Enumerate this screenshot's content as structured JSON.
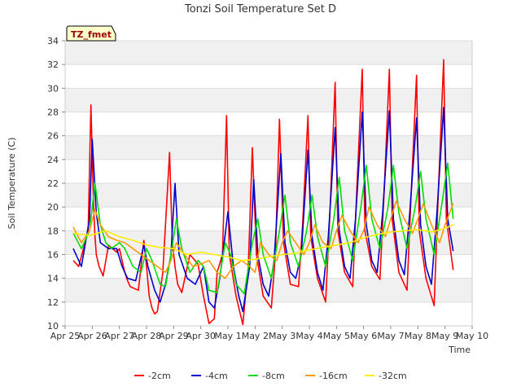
{
  "chart_data": {
    "type": "line",
    "title": "Tonzi Soil Temperature Set D",
    "xlabel": "Time",
    "ylabel": "Soil Temperature (C)",
    "badge": "TZ_fmet",
    "ylim": [
      10,
      34
    ],
    "yticks": [
      10,
      12,
      14,
      16,
      18,
      20,
      22,
      24,
      26,
      28,
      30,
      32,
      34
    ],
    "xlim": [
      0,
      15
    ],
    "xticks": [
      {
        "x": 0,
        "label": "Apr 25"
      },
      {
        "x": 1,
        "label": "Apr 26"
      },
      {
        "x": 2,
        "label": "Apr 27"
      },
      {
        "x": 3,
        "label": "Apr 28"
      },
      {
        "x": 4,
        "label": "Apr 29"
      },
      {
        "x": 5,
        "label": "Apr 30"
      },
      {
        "x": 6,
        "label": "May 1"
      },
      {
        "x": 7,
        "label": "May 2"
      },
      {
        "x": 8,
        "label": "May 3"
      },
      {
        "x": 9,
        "label": "May 4"
      },
      {
        "x": 10,
        "label": "May 5"
      },
      {
        "x": 11,
        "label": "May 6"
      },
      {
        "x": 12,
        "label": "May 7"
      },
      {
        "x": 13,
        "label": "May 8"
      },
      {
        "x": 14,
        "label": "May 9"
      },
      {
        "x": 15,
        "label": "May 10"
      }
    ],
    "grid": true,
    "legend_position": "bottom",
    "series": [
      {
        "name": "-2cm",
        "color": "#ff0000",
        "x": [
          0.3,
          0.5,
          0.85,
          0.95,
          1.05,
          1.1,
          1.15,
          1.25,
          1.4,
          1.6,
          1.9,
          2.0,
          2.1,
          2.2,
          2.3,
          2.4,
          2.7,
          2.9,
          3.0,
          3.1,
          3.2,
          3.3,
          3.4,
          3.6,
          3.85,
          3.95,
          4.05,
          4.15,
          4.3,
          4.6,
          4.9,
          5.1,
          5.3,
          5.5,
          5.6,
          5.8,
          5.95,
          6.05,
          6.3,
          6.55,
          6.75,
          6.9,
          7.05,
          7.3,
          7.6,
          7.75,
          7.9,
          8.05,
          8.3,
          8.6,
          8.75,
          8.95,
          9.05,
          9.3,
          9.6,
          9.75,
          9.95,
          10.05,
          10.3,
          10.6,
          10.75,
          10.95,
          11.05,
          11.3,
          11.6,
          11.75,
          11.95,
          12.05,
          12.3,
          12.6,
          12.75,
          12.95,
          13.05,
          13.3,
          13.6,
          13.75,
          13.95,
          14.05,
          14.3
        ],
        "y": [
          15.5,
          15.0,
          18.0,
          28.6,
          20.0,
          17.5,
          16.0,
          15.0,
          14.2,
          16.8,
          16.2,
          16.5,
          15.5,
          14.5,
          13.8,
          13.3,
          13.0,
          17.2,
          15.0,
          12.5,
          11.5,
          11.0,
          11.2,
          14.5,
          24.6,
          17.0,
          15.0,
          13.5,
          12.8,
          16.0,
          15.2,
          12.5,
          10.2,
          10.6,
          14.5,
          16.0,
          27.7,
          16.0,
          12.5,
          10.1,
          15.0,
          25.0,
          16.0,
          12.5,
          11.5,
          16.0,
          27.4,
          17.0,
          13.5,
          13.3,
          18.5,
          27.7,
          17.5,
          14.0,
          12.0,
          19.0,
          30.5,
          18.0,
          14.5,
          13.3,
          21.5,
          31.6,
          18.0,
          15.0,
          13.9,
          21.0,
          31.6,
          19.0,
          14.5,
          13.0,
          21.0,
          31.1,
          18.0,
          14.0,
          11.7,
          21.0,
          32.4,
          19.0,
          14.7
        ]
      },
      {
        "name": "-4cm",
        "color": "#0000cc",
        "x": [
          0.3,
          0.6,
          0.9,
          1.0,
          1.15,
          1.3,
          1.6,
          1.9,
          2.1,
          2.3,
          2.6,
          2.9,
          3.05,
          3.3,
          3.5,
          3.7,
          3.9,
          4.05,
          4.2,
          4.5,
          4.8,
          5.1,
          5.3,
          5.5,
          5.7,
          6.0,
          6.2,
          6.4,
          6.55,
          6.8,
          6.95,
          7.1,
          7.3,
          7.5,
          7.7,
          7.95,
          8.1,
          8.3,
          8.5,
          8.7,
          8.95,
          9.1,
          9.3,
          9.5,
          9.7,
          9.95,
          10.1,
          10.3,
          10.5,
          10.7,
          10.95,
          11.1,
          11.3,
          11.5,
          11.7,
          11.95,
          12.1,
          12.3,
          12.5,
          12.7,
          12.95,
          13.1,
          13.3,
          13.5,
          13.7,
          13.95,
          14.1,
          14.3
        ],
        "y": [
          16.5,
          15.0,
          19.0,
          25.7,
          19.5,
          17.0,
          16.5,
          16.5,
          15.0,
          14.0,
          13.8,
          16.8,
          15.0,
          13.0,
          12.0,
          13.5,
          16.0,
          22.0,
          16.0,
          14.0,
          13.5,
          15.0,
          12.0,
          11.5,
          14.0,
          19.6,
          15.0,
          12.5,
          11.2,
          15.0,
          22.3,
          16.0,
          13.5,
          12.5,
          15.5,
          24.5,
          17.0,
          14.5,
          14.0,
          16.0,
          24.8,
          17.5,
          14.5,
          13.0,
          17.5,
          26.7,
          18.0,
          15.0,
          14.0,
          19.0,
          28.0,
          18.5,
          15.5,
          14.5,
          19.5,
          28.1,
          19.0,
          15.5,
          14.3,
          19.5,
          27.5,
          18.5,
          15.0,
          13.5,
          19.5,
          28.4,
          19.0,
          16.3
        ]
      },
      {
        "name": "-8cm",
        "color": "#00dd00",
        "x": [
          0.3,
          0.6,
          0.9,
          1.1,
          1.3,
          1.5,
          1.7,
          2.0,
          2.2,
          2.5,
          2.8,
          3.0,
          3.2,
          3.5,
          3.7,
          3.9,
          4.1,
          4.3,
          4.6,
          4.9,
          5.1,
          5.3,
          5.6,
          5.9,
          6.1,
          6.3,
          6.6,
          6.9,
          7.1,
          7.3,
          7.6,
          7.9,
          8.1,
          8.3,
          8.6,
          8.9,
          9.1,
          9.3,
          9.6,
          9.9,
          10.1,
          10.3,
          10.6,
          10.9,
          11.1,
          11.3,
          11.6,
          11.9,
          12.1,
          12.3,
          12.6,
          12.9,
          13.1,
          13.3,
          13.6,
          13.9,
          14.1,
          14.3
        ],
        "y": [
          17.8,
          16.5,
          18.0,
          22.0,
          18.5,
          17.0,
          16.5,
          17.0,
          16.5,
          15.0,
          14.5,
          16.5,
          15.5,
          13.5,
          13.3,
          16.0,
          19.0,
          16.5,
          14.5,
          15.5,
          15.0,
          13.0,
          12.8,
          17.0,
          16.0,
          13.5,
          12.7,
          17.0,
          19.0,
          16.0,
          14.0,
          18.0,
          21.0,
          17.0,
          15.0,
          18.0,
          21.0,
          17.5,
          15.0,
          19.0,
          22.5,
          18.0,
          15.5,
          20.0,
          23.5,
          19.0,
          16.5,
          20.0,
          23.5,
          19.5,
          16.5,
          20.0,
          23.0,
          19.0,
          16.0,
          20.5,
          23.7,
          19.0
        ]
      },
      {
        "name": "-16cm",
        "color": "#ff9900",
        "x": [
          0.3,
          0.6,
          0.9,
          1.1,
          1.3,
          1.6,
          1.9,
          2.2,
          2.5,
          2.8,
          3.1,
          3.4,
          3.7,
          3.9,
          4.1,
          4.4,
          4.7,
          5.0,
          5.3,
          5.6,
          5.9,
          6.2,
          6.5,
          6.8,
          7.0,
          7.2,
          7.5,
          7.8,
          8.0,
          8.2,
          8.5,
          8.8,
          9.0,
          9.2,
          9.5,
          9.8,
          10.0,
          10.2,
          10.5,
          10.8,
          11.0,
          11.2,
          11.5,
          11.8,
          12.0,
          12.2,
          12.5,
          12.8,
          13.0,
          13.2,
          13.5,
          13.8,
          14.0,
          14.3
        ],
        "y": [
          18.3,
          17.0,
          18.0,
          19.8,
          18.5,
          17.5,
          17.2,
          17.0,
          16.5,
          16.0,
          15.5,
          15.0,
          14.5,
          15.5,
          17.0,
          16.0,
          15.0,
          15.2,
          15.5,
          14.5,
          14.0,
          15.0,
          15.5,
          15.0,
          14.5,
          17.0,
          16.0,
          15.5,
          17.0,
          18.0,
          17.0,
          16.0,
          17.0,
          18.5,
          17.0,
          16.5,
          18.0,
          19.3,
          18.0,
          17.0,
          18.0,
          20.0,
          18.5,
          17.5,
          19.0,
          20.5,
          19.0,
          17.8,
          19.0,
          20.3,
          18.5,
          17.0,
          18.5,
          20.3
        ]
      },
      {
        "name": "-32cm",
        "color": "#ffee00",
        "x": [
          0.3,
          0.6,
          0.9,
          1.2,
          1.5,
          2.0,
          2.5,
          3.0,
          3.5,
          4.0,
          4.5,
          5.0,
          5.5,
          6.0,
          6.5,
          7.0,
          7.5,
          8.0,
          8.5,
          9.0,
          9.5,
          10.0,
          10.5,
          11.0,
          11.5,
          12.0,
          12.5,
          13.0,
          13.5,
          14.0,
          14.3
        ],
        "y": [
          17.8,
          17.7,
          17.6,
          17.8,
          18.0,
          17.5,
          17.2,
          16.8,
          16.6,
          16.5,
          16.0,
          16.2,
          16.0,
          15.8,
          15.5,
          15.6,
          15.8,
          16.0,
          16.1,
          16.4,
          16.6,
          16.8,
          17.0,
          17.4,
          17.7,
          17.9,
          18.0,
          18.1,
          17.9,
          18.2,
          18.5
        ]
      }
    ]
  }
}
